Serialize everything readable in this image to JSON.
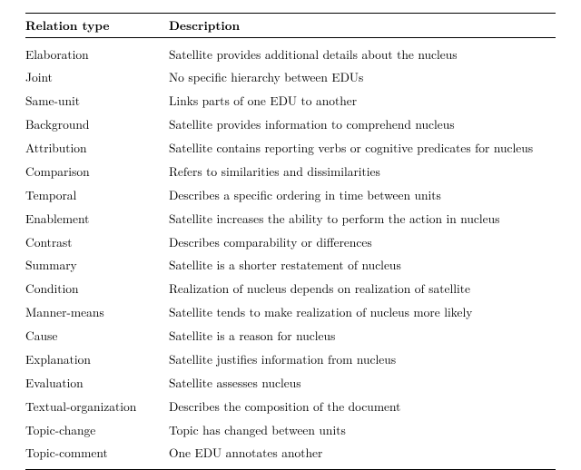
{
  "table": {
    "header": {
      "col1": "Relation type",
      "col2": "Description"
    },
    "rows": [
      {
        "type": "Elaboration",
        "desc": "Satellite provides additional details about the nucleus"
      },
      {
        "type": "Joint",
        "desc": "No specific hierarchy between EDUs"
      },
      {
        "type": "Same-unit",
        "desc": "Links parts of one EDU to another"
      },
      {
        "type": "Background",
        "desc": "Satellite provides information to comprehend nucleus"
      },
      {
        "type": "Attribution",
        "desc": "Satellite contains reporting verbs or cognitive predicates for nucleus"
      },
      {
        "type": "Comparison",
        "desc": "Refers to similarities and dissimilarities"
      },
      {
        "type": "Temporal",
        "desc": "Describes a specific ordering in time between units"
      },
      {
        "type": "Enablement",
        "desc": "Satellite increases the ability to perform the action in nucleus"
      },
      {
        "type": "Contrast",
        "desc": "Describes comparability or differences"
      },
      {
        "type": "Summary",
        "desc": "Satellite is a shorter restatement of nucleus"
      },
      {
        "type": "Condition",
        "desc": "Realization of nucleus depends on realization of satellite"
      },
      {
        "type": "Manner-means",
        "desc": "Satellite tends to make realization of nucleus more likely"
      },
      {
        "type": "Cause",
        "desc": "Satellite is a reason for nucleus"
      },
      {
        "type": "Explanation",
        "desc": "Satellite justifies information from nucleus"
      },
      {
        "type": "Evaluation",
        "desc": "Satellite assesses nucleus"
      },
      {
        "type": "Textual-organization",
        "desc": "Describes the composition of the document"
      },
      {
        "type": "Topic-change",
        "desc": "Topic has changed between units"
      },
      {
        "type": "Topic-comment",
        "desc": "One EDU annotates another"
      }
    ]
  }
}
